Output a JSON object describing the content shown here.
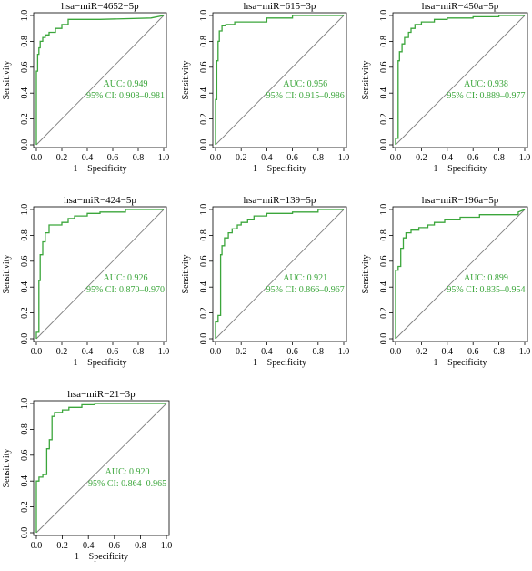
{
  "chart_data": [
    {
      "type": "line",
      "title": "hsa−miR−4652−5p",
      "xlabel": "1 − Specificity",
      "ylabel": "Sensitivity",
      "xlim": [
        0,
        1
      ],
      "ylim": [
        0,
        1
      ],
      "ticks": [
        0.0,
        0.2,
        0.4,
        0.6,
        0.8,
        1.0
      ],
      "tick_labels": [
        "0.0",
        "0.2",
        "0.4",
        "0.6",
        "0.8",
        "1.0"
      ],
      "auc_text": "AUC: 0.949",
      "ci_text": "95% CI: 0.908–0.981",
      "roc_color": "#3ba63b",
      "diagonal_color": "#808080",
      "series": [
        {
          "x": [
            0,
            0,
            0.01,
            0.01,
            0.02,
            0.02,
            0.03,
            0.03,
            0.05,
            0.05,
            0.07,
            0.07,
            0.1,
            0.1,
            0.15,
            0.15,
            0.2,
            0.2,
            0.25,
            0.25,
            0.5,
            0.9,
            1.0
          ],
          "y": [
            0,
            0.57,
            0.57,
            0.7,
            0.7,
            0.75,
            0.75,
            0.8,
            0.8,
            0.83,
            0.83,
            0.85,
            0.85,
            0.87,
            0.87,
            0.9,
            0.9,
            0.93,
            0.93,
            0.97,
            0.97,
            0.98,
            1.0
          ]
        }
      ]
    },
    {
      "type": "line",
      "title": "hsa−miR−615−3p",
      "xlabel": "1 − Specificity",
      "ylabel": "Sensitivity",
      "xlim": [
        0,
        1
      ],
      "ylim": [
        0,
        1
      ],
      "ticks": [
        0.0,
        0.2,
        0.4,
        0.6,
        0.8,
        1.0
      ],
      "tick_labels": [
        "0.0",
        "0.2",
        "0.4",
        "0.6",
        "0.8",
        "1.0"
      ],
      "auc_text": "AUC: 0.956",
      "ci_text": "95% CI: 0.915–0.986",
      "roc_color": "#3ba63b",
      "diagonal_color": "#808080",
      "series": [
        {
          "x": [
            0,
            0,
            0.01,
            0.01,
            0.02,
            0.02,
            0.03,
            0.03,
            0.05,
            0.05,
            0.08,
            0.08,
            0.15,
            0.15,
            0.4,
            0.4,
            0.6,
            0.6,
            1.0
          ],
          "y": [
            0,
            0.35,
            0.35,
            0.65,
            0.65,
            0.8,
            0.8,
            0.88,
            0.88,
            0.92,
            0.92,
            0.93,
            0.93,
            0.95,
            0.95,
            0.98,
            0.98,
            1.0,
            1.0
          ]
        }
      ]
    },
    {
      "type": "line",
      "title": "hsa−miR−450a−5p",
      "xlabel": "1 − Specificity",
      "ylabel": "Sensitivity",
      "xlim": [
        0,
        1
      ],
      "ylim": [
        0,
        1
      ],
      "ticks": [
        0.0,
        0.2,
        0.4,
        0.6,
        0.8,
        1.0
      ],
      "tick_labels": [
        "0.0",
        "0.2",
        "0.4",
        "0.6",
        "0.8",
        "1.0"
      ],
      "auc_text": "AUC: 0.938",
      "ci_text": "95% CI: 0.889–0.977",
      "roc_color": "#3ba63b",
      "diagonal_color": "#808080",
      "series": [
        {
          "x": [
            0,
            0,
            0.02,
            0.02,
            0.03,
            0.03,
            0.05,
            0.05,
            0.07,
            0.07,
            0.1,
            0.1,
            0.12,
            0.12,
            0.15,
            0.15,
            0.2,
            0.2,
            0.3,
            0.3,
            0.4,
            0.4,
            0.6,
            0.6,
            0.8,
            0.8,
            1.0
          ],
          "y": [
            0,
            0.05,
            0.05,
            0.65,
            0.65,
            0.72,
            0.72,
            0.78,
            0.78,
            0.83,
            0.83,
            0.87,
            0.87,
            0.9,
            0.9,
            0.93,
            0.93,
            0.95,
            0.95,
            0.97,
            0.97,
            0.98,
            0.98,
            0.99,
            0.99,
            1.0,
            1.0
          ]
        }
      ]
    },
    {
      "type": "line",
      "title": "hsa−miR−424−5p",
      "xlabel": "1 − Specificity",
      "ylabel": "Sensitivity",
      "xlim": [
        0,
        1
      ],
      "ylim": [
        0,
        1
      ],
      "ticks": [
        0.0,
        0.2,
        0.4,
        0.6,
        0.8,
        1.0
      ],
      "tick_labels": [
        "0.0",
        "0.2",
        "0.4",
        "0.6",
        "0.8",
        "1.0"
      ],
      "auc_text": "AUC: 0.926",
      "ci_text": "95% CI: 0.870–0.970",
      "roc_color": "#3ba63b",
      "diagonal_color": "#808080",
      "series": [
        {
          "x": [
            0,
            0,
            0.02,
            0.02,
            0.03,
            0.03,
            0.05,
            0.05,
            0.07,
            0.07,
            0.1,
            0.1,
            0.2,
            0.2,
            0.25,
            0.25,
            0.3,
            0.3,
            0.4,
            0.4,
            0.5,
            0.5,
            0.7,
            0.7,
            1.0
          ],
          "y": [
            0,
            0.05,
            0.05,
            0.45,
            0.45,
            0.65,
            0.65,
            0.75,
            0.75,
            0.82,
            0.82,
            0.88,
            0.88,
            0.9,
            0.9,
            0.93,
            0.93,
            0.95,
            0.95,
            0.97,
            0.97,
            0.98,
            0.98,
            1.0,
            1.0
          ]
        }
      ]
    },
    {
      "type": "line",
      "title": "hsa−miR−139−5p",
      "xlabel": "1 − Specificity",
      "ylabel": "Sensitivity",
      "xlim": [
        0,
        1
      ],
      "ylim": [
        0,
        1
      ],
      "ticks": [
        0.0,
        0.2,
        0.4,
        0.6,
        0.8,
        1.0
      ],
      "tick_labels": [
        "0.0",
        "0.2",
        "0.4",
        "0.6",
        "0.8",
        "1.0"
      ],
      "auc_text": "AUC: 0.921",
      "ci_text": "95% CI: 0.866–0.967",
      "roc_color": "#3ba63b",
      "diagonal_color": "#808080",
      "series": [
        {
          "x": [
            0,
            0,
            0.02,
            0.02,
            0.04,
            0.04,
            0.05,
            0.05,
            0.07,
            0.07,
            0.1,
            0.1,
            0.13,
            0.13,
            0.17,
            0.17,
            0.2,
            0.2,
            0.25,
            0.25,
            0.3,
            0.3,
            0.4,
            0.4,
            0.6,
            0.6,
            0.8,
            0.8,
            1.0
          ],
          "y": [
            0,
            0.13,
            0.13,
            0.18,
            0.18,
            0.65,
            0.65,
            0.72,
            0.72,
            0.78,
            0.78,
            0.82,
            0.82,
            0.85,
            0.85,
            0.88,
            0.88,
            0.9,
            0.9,
            0.92,
            0.92,
            0.95,
            0.95,
            0.97,
            0.97,
            0.98,
            0.98,
            1.0,
            1.0
          ]
        }
      ]
    },
    {
      "type": "line",
      "title": "hsa−miR−196a−5p",
      "xlabel": "1 − Specificity",
      "ylabel": "Sensitivity",
      "xlim": [
        0,
        1
      ],
      "ylim": [
        0,
        1
      ],
      "ticks": [
        0.0,
        0.2,
        0.4,
        0.6,
        0.8,
        1.0
      ],
      "tick_labels": [
        "0.0",
        "0.2",
        "0.4",
        "0.6",
        "0.8",
        "1.0"
      ],
      "auc_text": "AUC: 0.899",
      "ci_text": "95% CI: 0.835–0.954",
      "roc_color": "#3ba63b",
      "diagonal_color": "#808080",
      "series": [
        {
          "x": [
            0,
            0,
            0.02,
            0.02,
            0.04,
            0.04,
            0.06,
            0.06,
            0.08,
            0.08,
            0.12,
            0.12,
            0.18,
            0.18,
            0.25,
            0.25,
            0.3,
            0.3,
            0.38,
            0.38,
            0.5,
            0.5,
            0.65,
            0.65,
            0.95,
            0.95,
            1.0
          ],
          "y": [
            0,
            0.53,
            0.53,
            0.56,
            0.56,
            0.7,
            0.7,
            0.78,
            0.78,
            0.82,
            0.82,
            0.84,
            0.84,
            0.86,
            0.86,
            0.88,
            0.88,
            0.9,
            0.9,
            0.92,
            0.92,
            0.94,
            0.94,
            0.96,
            0.96,
            0.98,
            1.0
          ]
        }
      ]
    },
    {
      "type": "line",
      "title": "hsa−miR−21−3p",
      "xlabel": "1 − Specificity",
      "ylabel": "Sensitivity",
      "xlim": [
        0,
        1
      ],
      "ylim": [
        0,
        1
      ],
      "ticks": [
        0.0,
        0.2,
        0.4,
        0.6,
        0.8,
        1.0
      ],
      "tick_labels": [
        "0.0",
        "0.2",
        "0.4",
        "0.6",
        "0.8",
        "1.0"
      ],
      "auc_text": "AUC: 0.920",
      "ci_text": "95% CI: 0.864–0.965",
      "roc_color": "#3ba63b",
      "diagonal_color": "#808080",
      "series": [
        {
          "x": [
            0,
            0,
            0.02,
            0.02,
            0.05,
            0.05,
            0.08,
            0.08,
            0.1,
            0.1,
            0.12,
            0.12,
            0.14,
            0.14,
            0.2,
            0.2,
            0.25,
            0.25,
            0.35,
            0.35,
            0.45,
            0.45,
            1.0
          ],
          "y": [
            0,
            0.4,
            0.4,
            0.43,
            0.43,
            0.45,
            0.45,
            0.65,
            0.65,
            0.72,
            0.72,
            0.9,
            0.9,
            0.93,
            0.93,
            0.95,
            0.95,
            0.97,
            0.97,
            0.99,
            0.99,
            1.0,
            1.0
          ]
        }
      ]
    }
  ]
}
